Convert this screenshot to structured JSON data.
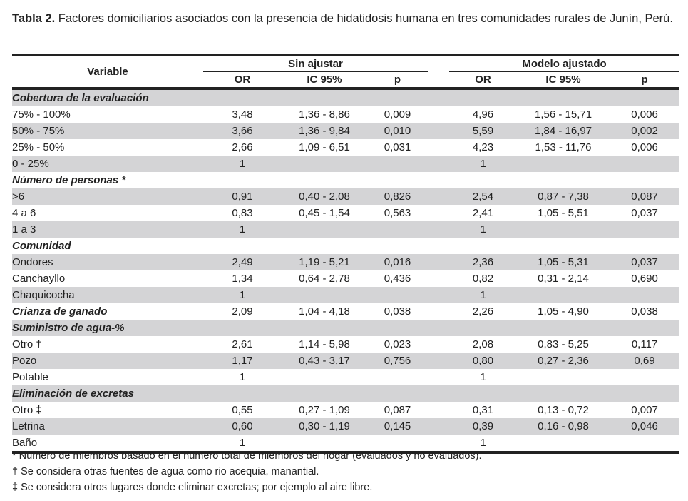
{
  "title": {
    "label": "Tabla 2.",
    "text": " Factores domiciliarios asociados con la presencia de hidatidosis humana en tres comunidades rurales de Junín, Perú."
  },
  "header": {
    "variable": "Variable",
    "group1": "Sin ajustar",
    "group2": "Modelo ajustado",
    "or": "OR",
    "ic": "IC 95%",
    "p": "p"
  },
  "rows": [
    {
      "type": "section",
      "label": "Cobertura de la evaluación",
      "vals": [
        "",
        "",
        "",
        "",
        "",
        ""
      ]
    },
    {
      "type": "item",
      "indent": 1,
      "label": "75% - 100%",
      "vals": [
        "3,48",
        "1,36 - 8,86",
        "0,009",
        "4,96",
        "1,56 - 15,71",
        "0,006"
      ]
    },
    {
      "type": "item",
      "indent": 1,
      "label": "50% - 75%",
      "vals": [
        "3,66",
        "1,36 - 9,84",
        "0,010",
        "5,59",
        "1,84 - 16,97",
        "0,002"
      ]
    },
    {
      "type": "item",
      "indent": 1,
      "label": "25% - 50%",
      "vals": [
        "2,66",
        "1,09 - 6,51",
        "0,031",
        "4,23",
        "1,53 - 11,76",
        "0,006"
      ]
    },
    {
      "type": "item",
      "indent": 1,
      "label": "0 - 25%",
      "vals": [
        "1",
        "",
        "",
        "1",
        "",
        ""
      ]
    },
    {
      "type": "section",
      "label": "Número de personas *",
      "vals": [
        "",
        "",
        "",
        "",
        "",
        ""
      ]
    },
    {
      "type": "item",
      "indent": 1,
      "label": ">6",
      "vals": [
        "0,91",
        "0,40 - 2,08",
        "0,826",
        "2,54",
        "0,87 - 7,38",
        "0,087"
      ]
    },
    {
      "type": "item",
      "indent": 1,
      "label": "4 a 6",
      "vals": [
        "0,83",
        "0,45 - 1,54",
        "0,563",
        "2,41",
        "1,05 - 5,51",
        "0,037"
      ]
    },
    {
      "type": "item",
      "indent": 1,
      "label": "1 a 3",
      "vals": [
        "1",
        "",
        "",
        "1",
        "",
        ""
      ]
    },
    {
      "type": "section",
      "label": "Comunidad",
      "vals": [
        "",
        "",
        "",
        "",
        "",
        ""
      ]
    },
    {
      "type": "item",
      "indent": 2,
      "label": "Ondores",
      "vals": [
        "2,49",
        "1,19 - 5,21",
        "0,016",
        "2,36",
        "1,05 - 5,31",
        "0,037"
      ]
    },
    {
      "type": "item",
      "indent": 2,
      "label": "Canchayllo",
      "vals": [
        "1,34",
        "0,64 - 2,78",
        "0,436",
        "0,82",
        "0,31 - 2,14",
        "0,690"
      ]
    },
    {
      "type": "item",
      "indent": 2,
      "label": "Chaquicocha",
      "vals": [
        "1",
        "",
        "",
        "1",
        "",
        ""
      ]
    },
    {
      "type": "section",
      "label": "Crianza de ganado",
      "vals": [
        "2,09",
        "1,04 - 4,18",
        "0,038",
        "2,26",
        "1,05 - 4,90",
        "0,038"
      ]
    },
    {
      "type": "section",
      "label": "Suministro de agua-%",
      "vals": [
        "",
        "",
        "",
        "",
        "",
        ""
      ]
    },
    {
      "type": "item",
      "indent": 1,
      "label": "Otro †",
      "vals": [
        "2,61",
        "1,14 - 5,98",
        "0,023",
        "2,08",
        "0,83 - 5,25",
        "0,117"
      ]
    },
    {
      "type": "item",
      "indent": 1,
      "label": "Pozo",
      "vals": [
        "1,17",
        "0,43 - 3,17",
        "0,756",
        "0,80",
        "0,27 - 2,36",
        "0,69"
      ]
    },
    {
      "type": "item",
      "indent": 1,
      "label": "Potable",
      "vals": [
        "1",
        "",
        "",
        "1",
        "",
        ""
      ]
    },
    {
      "type": "section",
      "label": "Eliminación de excretas",
      "vals": [
        "",
        "",
        "",
        "",
        "",
        ""
      ]
    },
    {
      "type": "item",
      "indent": 1,
      "label": "Otro ‡",
      "vals": [
        "0,55",
        "0,27 - 1,09",
        "0,087",
        "0,31",
        "0,13 - 0,72",
        "0,007"
      ]
    },
    {
      "type": "item",
      "indent": 1,
      "label": "Letrina",
      "vals": [
        "0,60",
        "0,30 - 1,19",
        "0,145",
        "0,39",
        "0,16 - 0,98",
        "0,046"
      ]
    },
    {
      "type": "item",
      "indent": 1,
      "label": "Baño",
      "vals": [
        "1",
        "",
        "",
        "1",
        "",
        ""
      ]
    }
  ],
  "footnotes": [
    "* Número de miembros basado en el número total de miembros del hogar (evaluados y no evaluados).",
    "† Se considera otras fuentes de agua como rio acequia, manantial.",
    "‡ Se considera otros lugares donde eliminar excretas; por ejemplo al aire libre."
  ],
  "colors": {
    "stripe": "#d4d4d6",
    "rule": "#222222"
  }
}
